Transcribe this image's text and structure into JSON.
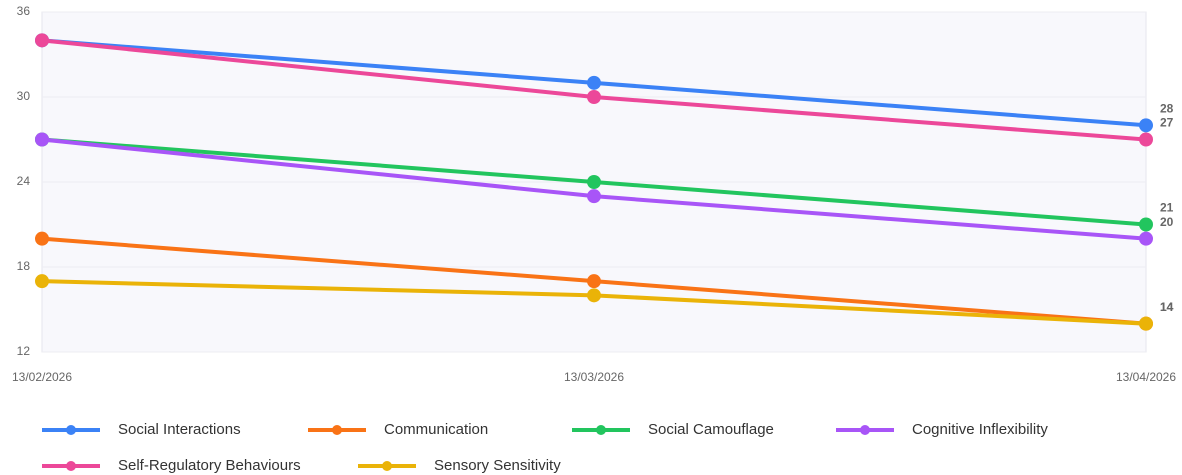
{
  "chart_data": {
    "type": "line",
    "categories": [
      "13/02/2026",
      "13/03/2026",
      "13/04/2026"
    ],
    "series": [
      {
        "name": "Social Interactions",
        "color": "#3b82f6",
        "values": [
          34,
          31,
          28
        ]
      },
      {
        "name": "Communication",
        "color": "#f97316",
        "values": [
          20,
          17,
          14
        ]
      },
      {
        "name": "Social Camouflage",
        "color": "#22c55e",
        "values": [
          27,
          24,
          21
        ]
      },
      {
        "name": "Cognitive Inflexibility",
        "color": "#a855f7",
        "values": [
          27,
          23,
          20
        ]
      },
      {
        "name": "Self-Regulatory Behaviours",
        "color": "#ec4899",
        "values": [
          34,
          30,
          27
        ]
      },
      {
        "name": "Sensory Sensitivity",
        "color": "#eab308",
        "values": [
          17,
          16,
          14
        ]
      }
    ],
    "ylim": [
      12,
      36
    ],
    "yticks": [
      12,
      18,
      24,
      30,
      36
    ],
    "grid": true,
    "legend": "bottom"
  }
}
